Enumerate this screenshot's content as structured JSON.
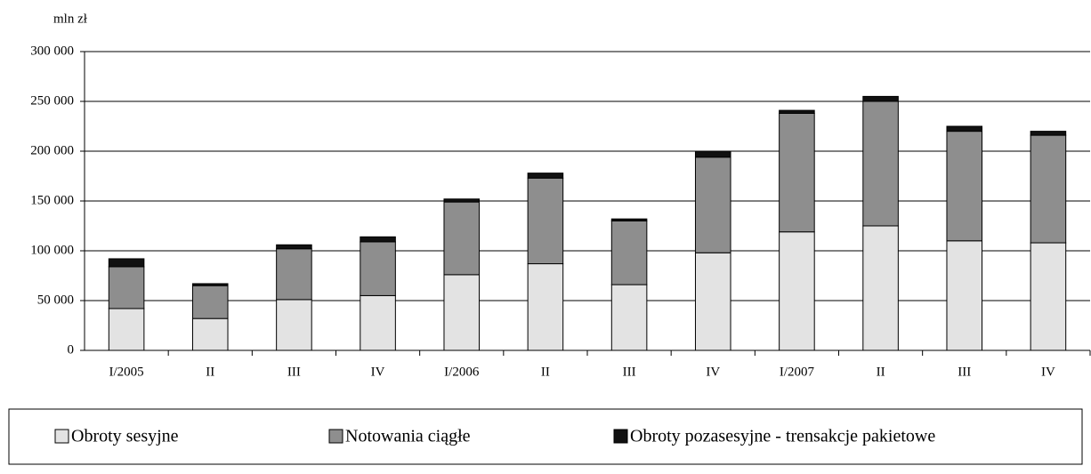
{
  "chart_data": {
    "type": "stacked_bar",
    "y_axis_label": "mln zł",
    "categories": [
      "I/2005",
      "II",
      "III",
      "IV",
      "I/2006",
      "II",
      "III",
      "IV",
      "I/2007",
      "II",
      "III",
      "IV"
    ],
    "series": [
      {
        "name": "Obroty sesyjne",
        "color": "#e3e3e3",
        "values": [
          42000,
          32000,
          51000,
          55000,
          76000,
          87000,
          66000,
          98000,
          119000,
          125000,
          110000,
          108000
        ]
      },
      {
        "name": "Notowania ciągłe",
        "color": "#8e8e8e",
        "values": [
          42000,
          33000,
          51000,
          54000,
          73000,
          86000,
          64000,
          96000,
          119000,
          125000,
          110000,
          108000
        ]
      },
      {
        "name": "Obroty pozasesyjne - trensakcje pakietowe",
        "color": "#111111",
        "values": [
          8000,
          2000,
          4000,
          5000,
          3000,
          5000,
          2000,
          6000,
          3000,
          5000,
          5000,
          4000
        ]
      }
    ],
    "ylim": [
      0,
      300000
    ],
    "yticks": [
      0,
      {
        "value": 50000,
        "label": "50 000"
      },
      {
        "value": 100000,
        "label": "100 000"
      },
      {
        "value": 150000,
        "label": "150 000"
      },
      {
        "value": 200000,
        "label": "200 000"
      },
      {
        "value": 250000,
        "label": "250 000"
      },
      {
        "value": 300000,
        "label": "300 000"
      }
    ],
    "grid": true
  }
}
